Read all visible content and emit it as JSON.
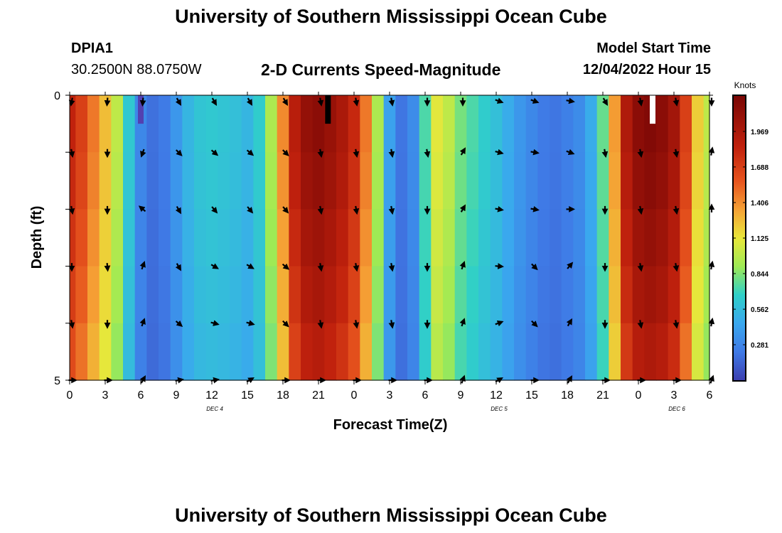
{
  "page": {
    "title": "University of Southern Mississippi Ocean Cube",
    "footer_title": "University of Southern Mississippi Ocean Cube",
    "station_id": "DPIA1",
    "coordinates": "30.2500N  88.0750W",
    "chart_subtitle": "2-D Currents Speed-Magnitude",
    "model_start_label": "Model Start Time",
    "model_start_value": "12/04/2022 Hour 15"
  },
  "chart_data": {
    "type": "heatmap",
    "title": "2-D Currents Speed-Magnitude",
    "xlabel": "Forecast Time(Z)",
    "ylabel": "Depth (ft)",
    "x_ticks": [
      "0",
      "3",
      "6",
      "9",
      "12",
      "15",
      "18",
      "21",
      "0",
      "3",
      "6",
      "9",
      "12",
      "15",
      "18",
      "21",
      "0",
      "3",
      "6"
    ],
    "x_range_hours": [
      0,
      54
    ],
    "y_ticks": [
      "0",
      "5"
    ],
    "y_range_ft": [
      0,
      5
    ],
    "date_labels": [
      {
        "text": "DEC 4",
        "hour": 12
      },
      {
        "text": "DEC 5",
        "hour": 36
      },
      {
        "text": "DEC 6",
        "hour": 51
      }
    ],
    "colorbar": {
      "unit": "Knots",
      "min": 0,
      "max": 2.25,
      "tick_labels": [
        "1.969",
        "1.688",
        "1.406",
        "1.125",
        "0.844",
        "0.562",
        "0.281"
      ],
      "tick_values": [
        1.969,
        1.688,
        1.406,
        1.125,
        0.844,
        0.562,
        0.281
      ]
    },
    "depth_levels": 5,
    "hourly_speed_knots": [
      1.75,
      1.6,
      1.4,
      1.2,
      0.95,
      0.6,
      0.28,
      0.18,
      0.22,
      0.35,
      0.5,
      0.58,
      0.6,
      0.58,
      0.55,
      0.5,
      0.62,
      0.9,
      1.35,
      1.8,
      2.0,
      2.05,
      1.98,
      1.88,
      1.72,
      1.4,
      0.9,
      0.4,
      0.2,
      0.3,
      0.7,
      1.05,
      0.95,
      0.78,
      0.7,
      0.62,
      0.55,
      0.45,
      0.35,
      0.28,
      0.22,
      0.2,
      0.24,
      0.3,
      0.45,
      0.75,
      1.3,
      1.85,
      2.05,
      2.1,
      2.05,
      1.92,
      1.6,
      1.15,
      0.95
    ],
    "depth_factor": [
      1.05,
      1.03,
      1.0,
      0.97,
      0.93
    ],
    "vectors": {
      "hours": [
        0,
        3,
        6,
        9,
        12,
        15,
        18,
        21,
        24,
        27,
        30,
        33,
        36,
        39,
        42,
        45,
        48,
        51,
        54
      ],
      "depth_rows": [
        0.0,
        1.0,
        2.0,
        3.0,
        4.0,
        5.0
      ],
      "angles_deg": [
        [
          100,
          95,
          95,
          60,
          60,
          60,
          60,
          80,
          80,
          80,
          90,
          90,
          20,
          20,
          10,
          60,
          80,
          80,
          90
        ],
        [
          80,
          90,
          110,
          45,
          40,
          40,
          45,
          80,
          80,
          80,
          80,
          -60,
          15,
          10,
          20,
          80,
          80,
          80,
          -80
        ],
        [
          80,
          90,
          -140,
          60,
          50,
          50,
          50,
          80,
          80,
          80,
          90,
          -60,
          10,
          10,
          0,
          90,
          80,
          80,
          -90
        ],
        [
          90,
          85,
          -70,
          60,
          30,
          30,
          40,
          80,
          80,
          80,
          90,
          -70,
          5,
          45,
          -50,
          90,
          80,
          80,
          -80
        ],
        [
          80,
          90,
          -70,
          40,
          15,
          15,
          45,
          80,
          80,
          80,
          90,
          -70,
          -20,
          45,
          -60,
          90,
          80,
          80,
          -80
        ],
        [
          0,
          0,
          -60,
          -10,
          -10,
          -30,
          0,
          0,
          0,
          0,
          0,
          -70,
          -30,
          0,
          -60,
          0,
          0,
          0,
          -70
        ]
      ]
    },
    "markers": [
      {
        "hour": 21.8,
        "depth_from": 0.0,
        "depth_to": 0.5,
        "color": "#000000"
      },
      {
        "hour": 49.2,
        "depth_from": 0.0,
        "depth_to": 0.5,
        "color": "#ffffff"
      },
      {
        "hour": 6.0,
        "depth_from": 0.0,
        "depth_to": 0.5,
        "color": "#5340b0"
      }
    ]
  }
}
